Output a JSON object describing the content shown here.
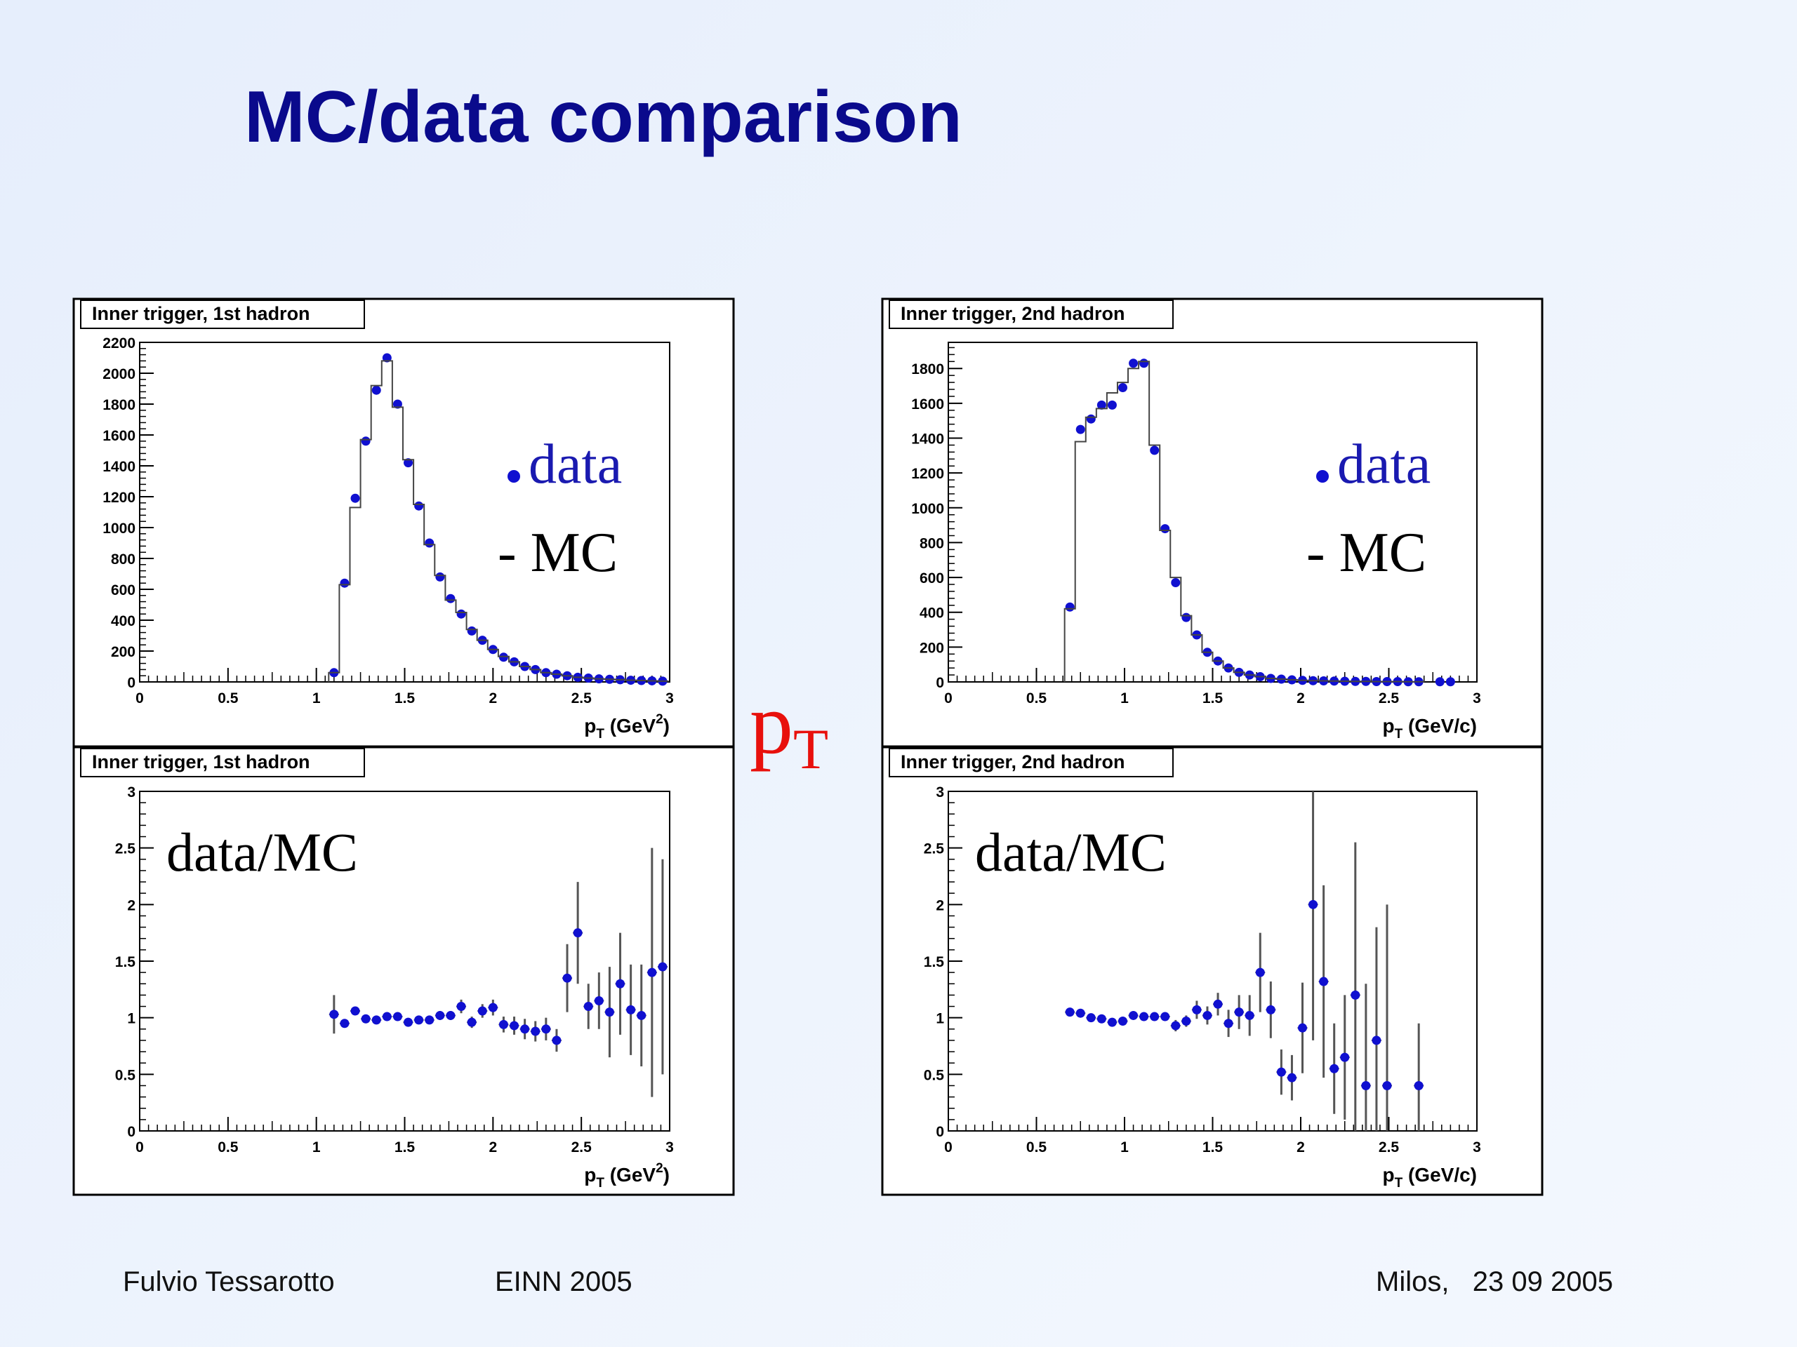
{
  "slide": {
    "title": "MC/data comparison",
    "pt_symbol": "p",
    "pt_symbol_sub": "T",
    "footer": {
      "author": "Fulvio Tessarotto",
      "event": "EINN 2005",
      "place_date": "Milos,   23 09 2005"
    }
  },
  "colors": {
    "title": "#0a0a8c",
    "data_marker": "#1010d0",
    "mc_line": "#444444",
    "pt_symbol": "#e8100c",
    "legend_data_text": "#1a1ab0"
  },
  "chart_data": [
    {
      "id": "top-left",
      "type": "histogram",
      "title": "Inner trigger, 1st hadron",
      "xlabel_main": "p",
      "xlabel_sub": "T",
      "xlabel_units": " (GeV",
      "xlabel_sup": "2",
      "xlabel_close": ")",
      "xlim": [
        0,
        3
      ],
      "ylim": [
        0,
        2200
      ],
      "xticks": [
        0,
        0.5,
        1,
        1.5,
        2,
        2.5,
        3
      ],
      "xtick_labels": [
        "0",
        "0.5",
        "1",
        "1.5",
        "2",
        "2.5",
        "3"
      ],
      "yticks": [
        0,
        200,
        400,
        600,
        800,
        1000,
        1200,
        1400,
        1600,
        1800,
        2000,
        2200
      ],
      "ytick_labels": [
        "0",
        "200",
        "400",
        "600",
        "800",
        "1000",
        "1200",
        "1400",
        "1600",
        "1800",
        "2000",
        "2200"
      ],
      "legend": {
        "data_label": "data",
        "mc_label": "- MC"
      },
      "series": [
        {
          "name": "data",
          "style": "points",
          "x": [
            1.1,
            1.16,
            1.22,
            1.28,
            1.34,
            1.4,
            1.46,
            1.52,
            1.58,
            1.64,
            1.7,
            1.76,
            1.82,
            1.88,
            1.94,
            2.0,
            2.06,
            2.12,
            2.18,
            2.24,
            2.3,
            2.36,
            2.42,
            2.48,
            2.54,
            2.6,
            2.66,
            2.72,
            2.78,
            2.84,
            2.9,
            2.96
          ],
          "y": [
            60,
            640,
            1190,
            1560,
            1890,
            2100,
            1800,
            1420,
            1140,
            900,
            680,
            540,
            440,
            330,
            270,
            210,
            160,
            130,
            100,
            80,
            60,
            50,
            40,
            30,
            25,
            20,
            17,
            14,
            11,
            9,
            7,
            5
          ]
        },
        {
          "name": "MC",
          "style": "step",
          "bin_edges": [
            1.07,
            1.13,
            1.19,
            1.25,
            1.31,
            1.37,
            1.43,
            1.49,
            1.55,
            1.61,
            1.67,
            1.73,
            1.79,
            1.85,
            1.91,
            1.97,
            2.03,
            2.09,
            2.15,
            2.21,
            2.27,
            2.33,
            2.39,
            2.45,
            2.51,
            2.57,
            2.63,
            2.69,
            2.75,
            2.81,
            2.87,
            2.93,
            2.99
          ],
          "values": [
            60,
            630,
            1130,
            1570,
            1920,
            2080,
            1780,
            1440,
            1150,
            890,
            690,
            530,
            450,
            340,
            270,
            210,
            165,
            130,
            100,
            80,
            60,
            50,
            40,
            30,
            25,
            20,
            17,
            14,
            11,
            9,
            7,
            5
          ]
        }
      ]
    },
    {
      "id": "top-right",
      "type": "histogram",
      "title": "Inner trigger, 2nd hadron",
      "xlabel_main": "p",
      "xlabel_sub": "T",
      "xlabel_units": " (GeV/c)",
      "xlabel_sup": "",
      "xlabel_close": "",
      "xlim": [
        0,
        3
      ],
      "ylim": [
        0,
        1950
      ],
      "xticks": [
        0,
        0.5,
        1,
        1.5,
        2,
        2.5,
        3
      ],
      "xtick_labels": [
        "0",
        "0.5",
        "1",
        "1.5",
        "2",
        "2.5",
        "3"
      ],
      "yticks": [
        0,
        200,
        400,
        600,
        800,
        1000,
        1200,
        1400,
        1600,
        1800
      ],
      "ytick_labels": [
        "0",
        "200",
        "400",
        "600",
        "800",
        "1000",
        "1200",
        "1400",
        "1600",
        "1800"
      ],
      "legend": {
        "data_label": "data",
        "mc_label": "- MC"
      },
      "series": [
        {
          "name": "data",
          "style": "points",
          "x": [
            0.69,
            0.75,
            0.81,
            0.87,
            0.93,
            0.99,
            1.05,
            1.11,
            1.17,
            1.23,
            1.29,
            1.35,
            1.41,
            1.47,
            1.53,
            1.59,
            1.65,
            1.71,
            1.77,
            1.83,
            1.89,
            1.95,
            2.01,
            2.07,
            2.13,
            2.19,
            2.25,
            2.31,
            2.37,
            2.43,
            2.49,
            2.55,
            2.61,
            2.67,
            2.79,
            2.85
          ],
          "y": [
            430,
            1450,
            1510,
            1590,
            1590,
            1690,
            1830,
            1830,
            1330,
            880,
            570,
            370,
            270,
            170,
            120,
            80,
            55,
            40,
            30,
            20,
            16,
            12,
            9,
            7,
            6,
            5,
            4,
            3,
            3,
            2,
            2,
            2,
            1,
            1,
            1,
            1
          ]
        },
        {
          "name": "MC",
          "style": "step",
          "bin_edges": [
            0.66,
            0.72,
            0.78,
            0.84,
            0.9,
            0.96,
            1.02,
            1.08,
            1.14,
            1.2,
            1.26,
            1.32,
            1.38,
            1.44,
            1.5,
            1.56,
            1.62,
            1.68,
            1.74,
            1.8,
            1.86,
            1.92,
            1.98,
            2.04,
            2.1,
            2.16,
            2.22,
            2.28,
            2.34,
            2.4,
            2.46,
            2.52,
            2.58,
            2.64,
            2.7
          ],
          "values": [
            420,
            1380,
            1520,
            1570,
            1660,
            1720,
            1800,
            1840,
            1360,
            870,
            600,
            380,
            270,
            170,
            120,
            80,
            55,
            40,
            30,
            20,
            16,
            12,
            9,
            7,
            6,
            5,
            4,
            3,
            3,
            2,
            2,
            2,
            1,
            1
          ]
        }
      ]
    },
    {
      "id": "bottom-left",
      "type": "scatter",
      "title": "Inner trigger, 1st hadron",
      "annotation": "data/MC",
      "xlabel_main": "p",
      "xlabel_sub": "T",
      "xlabel_units": " (GeV",
      "xlabel_sup": "2",
      "xlabel_close": ")",
      "xlim": [
        0,
        3
      ],
      "ylim": [
        0,
        3
      ],
      "xticks": [
        0,
        0.5,
        1,
        1.5,
        2,
        2.5,
        3
      ],
      "xtick_labels": [
        "0",
        "0.5",
        "1",
        "1.5",
        "2",
        "2.5",
        "3"
      ],
      "yticks": [
        0,
        0.5,
        1,
        1.5,
        2,
        2.5,
        3
      ],
      "ytick_labels": [
        "0",
        "0.5",
        "1",
        "1.5",
        "2",
        "2.5",
        "3"
      ],
      "series": [
        {
          "name": "data/MC",
          "style": "points_err",
          "x": [
            1.1,
            1.16,
            1.22,
            1.28,
            1.34,
            1.4,
            1.46,
            1.52,
            1.58,
            1.64,
            1.7,
            1.76,
            1.82,
            1.88,
            1.94,
            2.0,
            2.06,
            2.12,
            2.18,
            2.24,
            2.3,
            2.36,
            2.42,
            2.48,
            2.54,
            2.6,
            2.66,
            2.72,
            2.78,
            2.84,
            2.9,
            2.96
          ],
          "y": [
            1.03,
            0.95,
            1.06,
            0.99,
            0.98,
            1.01,
            1.01,
            0.96,
            0.98,
            0.98,
            1.02,
            1.02,
            1.1,
            0.96,
            1.06,
            1.09,
            0.94,
            0.93,
            0.9,
            0.88,
            0.9,
            0.8,
            1.35,
            1.75,
            1.1,
            1.15,
            1.05,
            1.3,
            1.07,
            1.02,
            1.4,
            1.45
          ],
          "err": [
            0.17,
            0.03,
            0.03,
            0.03,
            0.03,
            0.03,
            0.03,
            0.03,
            0.03,
            0.03,
            0.04,
            0.04,
            0.06,
            0.05,
            0.06,
            0.07,
            0.07,
            0.08,
            0.09,
            0.09,
            0.1,
            0.1,
            0.3,
            0.45,
            0.2,
            0.25,
            0.4,
            0.45,
            0.4,
            0.45,
            1.1,
            0.95
          ]
        }
      ]
    },
    {
      "id": "bottom-right",
      "type": "scatter",
      "title": "Inner trigger, 2nd hadron",
      "annotation": "data/MC",
      "xlabel_main": "p",
      "xlabel_sub": "T",
      "xlabel_units": " (GeV/c)",
      "xlabel_sup": "",
      "xlabel_close": "",
      "xlim": [
        0,
        3
      ],
      "ylim": [
        0,
        3
      ],
      "xticks": [
        0,
        0.5,
        1,
        1.5,
        2,
        2.5,
        3
      ],
      "xtick_labels": [
        "0",
        "0.5",
        "1",
        "1.5",
        "2",
        "2.5",
        "3"
      ],
      "yticks": [
        0,
        0.5,
        1,
        1.5,
        2,
        2.5,
        3
      ],
      "ytick_labels": [
        "0",
        "0.5",
        "1",
        "1.5",
        "2",
        "2.5",
        "3"
      ],
      "series": [
        {
          "name": "data/MC",
          "style": "points_err",
          "x": [
            0.69,
            0.75,
            0.81,
            0.87,
            0.93,
            0.99,
            1.05,
            1.11,
            1.17,
            1.23,
            1.29,
            1.35,
            1.41,
            1.47,
            1.53,
            1.59,
            1.65,
            1.71,
            1.77,
            1.83,
            1.89,
            1.95,
            2.01,
            2.07,
            2.13,
            2.19,
            2.25,
            2.31,
            2.37,
            2.43,
            2.49,
            2.67
          ],
          "y": [
            1.05,
            1.04,
            1.0,
            0.99,
            0.96,
            0.97,
            1.02,
            1.01,
            1.01,
            1.01,
            0.93,
            0.97,
            1.07,
            1.02,
            1.12,
            0.95,
            1.05,
            1.02,
            1.4,
            1.07,
            0.52,
            0.47,
            0.91,
            2.0,
            1.32,
            0.55,
            0.65,
            1.2,
            0.4,
            0.8,
            0.4,
            0.4
          ],
          "err": [
            0.03,
            0.03,
            0.03,
            0.03,
            0.03,
            0.03,
            0.03,
            0.03,
            0.03,
            0.03,
            0.05,
            0.05,
            0.08,
            0.08,
            0.1,
            0.12,
            0.15,
            0.18,
            0.35,
            0.25,
            0.2,
            0.2,
            0.4,
            1.2,
            0.85,
            0.4,
            0.55,
            1.35,
            0.9,
            1.0,
            1.6,
            0.55
          ]
        }
      ]
    }
  ]
}
